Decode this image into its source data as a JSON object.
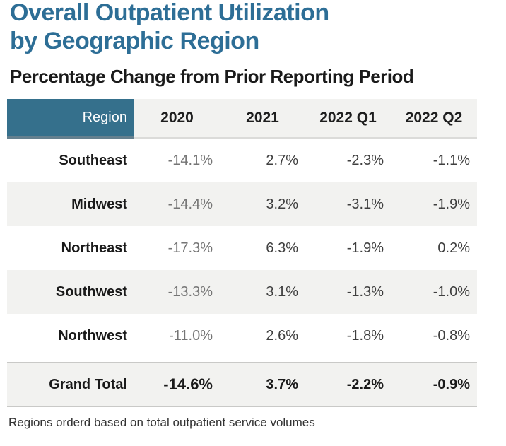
{
  "page": {
    "title_line1": "Overall Outpatient Utilization",
    "title_line2": "by Geographic Region",
    "subtitle": "Percentage Change from Prior Reporting Period",
    "footnote": "Regions orderd based on total outpatient service volumes"
  },
  "colors": {
    "title_blue": "#2D6E96",
    "region_header_bg": "#35708C",
    "region_header_text": "#FFFFFF",
    "year_header_bg": "#F2F2F0",
    "stripe_row_bg": "#F2F2F0",
    "grand_total_bg": "#F2F2F0",
    "col_2020_text": "#757575",
    "value_text": "#3F3F3F",
    "label_text": "#1A1A1A"
  },
  "chart_data": {
    "type": "table",
    "title": "Overall Outpatient Utilization by Geographic Region",
    "subtitle": "Percentage Change from Prior Reporting Period",
    "columns": [
      "Region",
      "2020",
      "2021",
      "2022 Q1",
      "2022 Q2"
    ],
    "rows": [
      {
        "region": "Southeast",
        "cells": [
          "-14.1%",
          "2.7%",
          "-2.3%",
          "-1.1%"
        ],
        "values": [
          -14.1,
          2.7,
          -2.3,
          -1.1
        ]
      },
      {
        "region": "Midwest",
        "cells": [
          "-14.4%",
          "3.2%",
          "-3.1%",
          "-1.9%"
        ],
        "values": [
          -14.4,
          3.2,
          -3.1,
          -1.9
        ]
      },
      {
        "region": "Northeast",
        "cells": [
          "-17.3%",
          "6.3%",
          "-1.9%",
          "0.2%"
        ],
        "values": [
          -17.3,
          6.3,
          -1.9,
          0.2
        ]
      },
      {
        "region": "Southwest",
        "cells": [
          "-13.3%",
          "3.1%",
          "-1.3%",
          "-1.0%"
        ],
        "values": [
          -13.3,
          3.1,
          -1.3,
          -1.0
        ]
      },
      {
        "region": "Northwest",
        "cells": [
          "-11.0%",
          "2.6%",
          "-1.8%",
          "-0.8%"
        ],
        "values": [
          -11.0,
          2.6,
          -1.8,
          -0.8
        ]
      }
    ],
    "grand_total": {
      "region": "Grand Total",
      "cells": [
        "-14.6%",
        "3.7%",
        "-2.2%",
        "-0.9%"
      ],
      "values": [
        -14.6,
        3.7,
        -2.2,
        -0.9
      ]
    },
    "footnote": "Regions orderd based on total outpatient service volumes"
  }
}
